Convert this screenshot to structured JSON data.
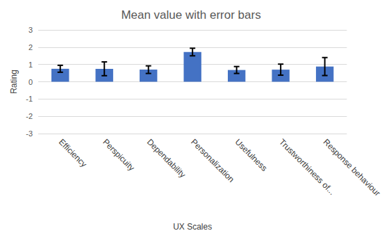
{
  "chart_data": {
    "type": "bar",
    "title": "Mean value with error bars",
    "x_label": "UX Scales",
    "y_label": "Rating",
    "categories": [
      "Efficiency",
      "Perspicuity",
      "Dependability",
      "Personalization",
      "Usefulness",
      "Trustworthiness of...",
      "Response behaviour"
    ],
    "values": [
      0.75,
      0.75,
      0.7,
      1.72,
      0.68,
      0.7,
      0.88
    ],
    "errors": [
      0.2,
      0.4,
      0.22,
      0.22,
      0.2,
      0.32,
      0.52
    ],
    "color": "#4472c4",
    "ylim": [
      -3,
      3
    ],
    "yticks": [
      -3,
      -2,
      -1,
      0,
      1,
      2,
      3
    ],
    "grid": true
  }
}
